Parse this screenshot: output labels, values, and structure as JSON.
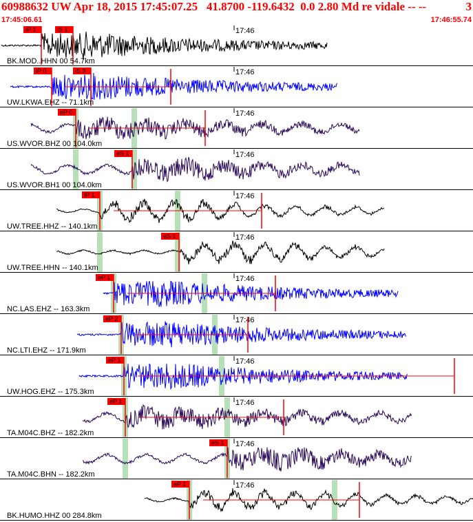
{
  "header": {
    "title": "60988632 UW Apr 18, 2015 17:45:07.25   41.8700 -119.6432  0.0 2.80 Md re vidale -- --",
    "count": "3",
    "start_time": "17:45:06.61",
    "end_time": "17:46:55.74"
  },
  "colors": {
    "header_text": "#ff0000",
    "pick_flag": "#ff0000",
    "pick_line": "#ff0000",
    "theoretical_band": "#b8e0b8",
    "trace_black": "#000000",
    "trace_blue": "#0000ff",
    "trace_purple": "#2a0a5a"
  },
  "minute_tick_label": "17:46",
  "panels": [
    {
      "label": "BK.MOD..HHN 00 54.7km",
      "color": "black",
      "picks": [
        "iP 1",
        "iS 1"
      ],
      "amp": "high"
    },
    {
      "label": "UW.LKWA.EHZ -- 71.1km",
      "color": "blue",
      "picks": [
        "iP 0",
        "iS 3"
      ],
      "amp": "high"
    },
    {
      "label": "US.WVOR.BHZ 00 104.0km",
      "color": "purple",
      "picks": [
        "eP 0"
      ],
      "amp": "mid"
    },
    {
      "label": "US.WVOR.BH1 00 104.0km",
      "color": "purple",
      "picks": [
        "eS 1"
      ],
      "amp": "mid"
    },
    {
      "label": "UW.TREE.HHZ -- 140.1km",
      "color": "black",
      "picks": [
        "iP 1"
      ],
      "amp": "low"
    },
    {
      "label": "UW.TREE.HHN -- 140.1km",
      "color": "black",
      "picks": [
        "eS 1"
      ],
      "amp": "low"
    },
    {
      "label": "NC.LAS.EHZ -- 163.3km",
      "color": "blue",
      "picks": [
        "eP 1"
      ],
      "amp": "high"
    },
    {
      "label": "NC.LTI.EHZ -- 171.9km",
      "color": "blue",
      "picks": [
        "eP 2"
      ],
      "amp": "high"
    },
    {
      "label": "UW.HOG.EHZ -- 175.3km",
      "color": "blue",
      "picks": [
        "eP 1"
      ],
      "amp": "high"
    },
    {
      "label": "TA.M04C.BHZ -- 182.2km",
      "color": "purple",
      "picks": [
        "eP 1"
      ],
      "amp": "mid"
    },
    {
      "label": "TA.M04C.BHN -- 182.2km",
      "color": "purple",
      "picks": [
        "eS 1"
      ],
      "amp": "mid"
    },
    {
      "label": "BK.HUMO.HHZ 00 284.8km",
      "color": "black",
      "picks": [
        "eP 1"
      ],
      "amp": "low"
    }
  ]
}
